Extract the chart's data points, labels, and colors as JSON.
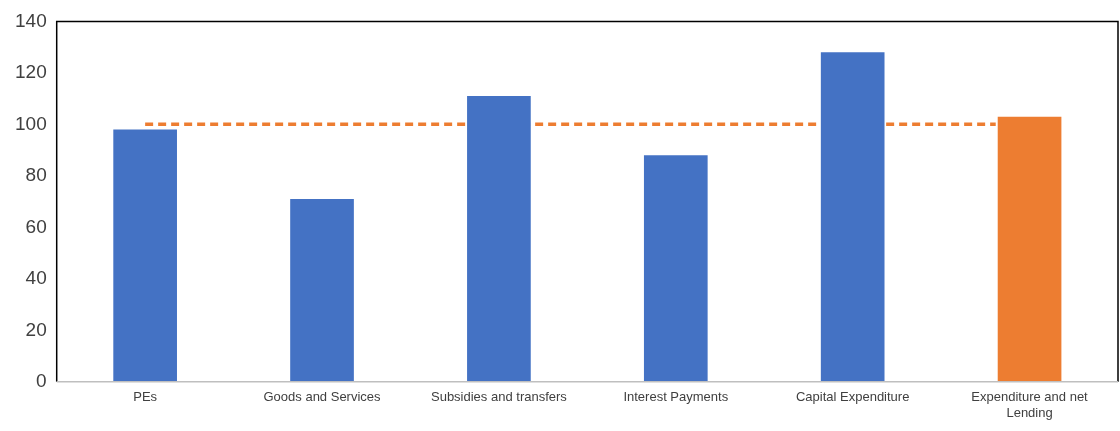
{
  "chart_data": {
    "type": "bar",
    "categories": [
      "PEs",
      "Goods and Services",
      "Subsidies and transfers",
      "Interest Payments",
      "Capital Expenditure",
      "Expenditure and net Lending"
    ],
    "series": [
      {
        "colors": [
          "#4472c4",
          "#4472c4",
          "#4472c4",
          "#4472c4",
          "#4472c4",
          "#ed7d31"
        ],
        "values": [
          98,
          71,
          111,
          88,
          128,
          103
        ]
      }
    ],
    "ref_lines": [
      {
        "axis": "y",
        "value": 100,
        "color": "#ed7d31",
        "line_style": "dashed"
      }
    ],
    "ylim": [
      0,
      140
    ],
    "yticks": [
      0,
      20,
      40,
      60,
      80,
      100,
      120,
      140
    ],
    "grid": false,
    "legend": false
  }
}
